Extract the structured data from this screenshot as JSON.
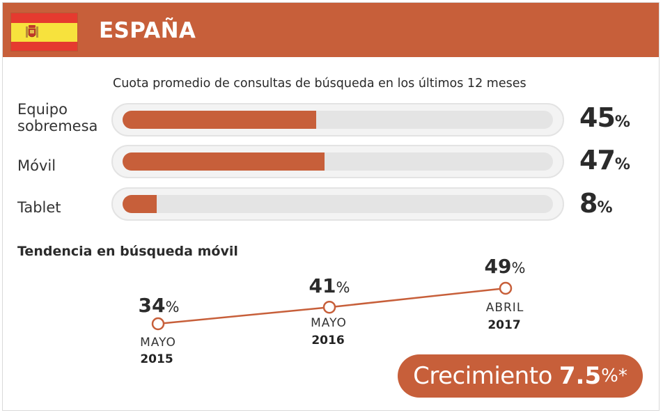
{
  "header": {
    "country": "ESPAÑA",
    "flag_colors": {
      "red": "#e53a2f",
      "yellow": "#f7e23d"
    }
  },
  "colors": {
    "accent": "#c75f3a",
    "track": "#e4e4e4",
    "text": "#2b2b2b"
  },
  "share_chart": {
    "subtitle": "Cuota promedio de consultas de búsqueda en los últimos 12 meses",
    "rows": [
      {
        "label_line1": "Equipo",
        "label_line2": "sobremesa",
        "value": "45",
        "unit": "%",
        "fraction": 0.45
      },
      {
        "label_line1": "Móvil",
        "label_line2": "",
        "value": "47",
        "unit": "%",
        "fraction": 0.47
      },
      {
        "label_line1": "Tablet",
        "label_line2": "",
        "value": "8",
        "unit": "%",
        "fraction": 0.08
      }
    ]
  },
  "trend": {
    "title": "Tendencia en búsqueda móvil",
    "points": [
      {
        "value": "34",
        "unit": "%",
        "month": "MAYO",
        "year": "2015"
      },
      {
        "value": "41",
        "unit": "%",
        "month": "MAYO",
        "year": "2016"
      },
      {
        "value": "49",
        "unit": "%",
        "month": "ABRIL",
        "year": "2017"
      }
    ]
  },
  "growth": {
    "label": "Crecimiento",
    "value": "7.5",
    "suffix": "%*"
  },
  "chart_data": [
    {
      "type": "bar",
      "orientation": "horizontal",
      "title": "Cuota promedio de consultas de búsqueda en los últimos 12 meses",
      "categories": [
        "Equipo sobremesa",
        "Móvil",
        "Tablet"
      ],
      "values": [
        45,
        47,
        8
      ],
      "unit": "%",
      "xlim": [
        0,
        100
      ]
    },
    {
      "type": "line",
      "title": "Tendencia en búsqueda móvil",
      "x": [
        "MAYO 2015",
        "MAYO 2016",
        "ABRIL 2017"
      ],
      "values": [
        34,
        41,
        49
      ],
      "unit": "%"
    }
  ]
}
